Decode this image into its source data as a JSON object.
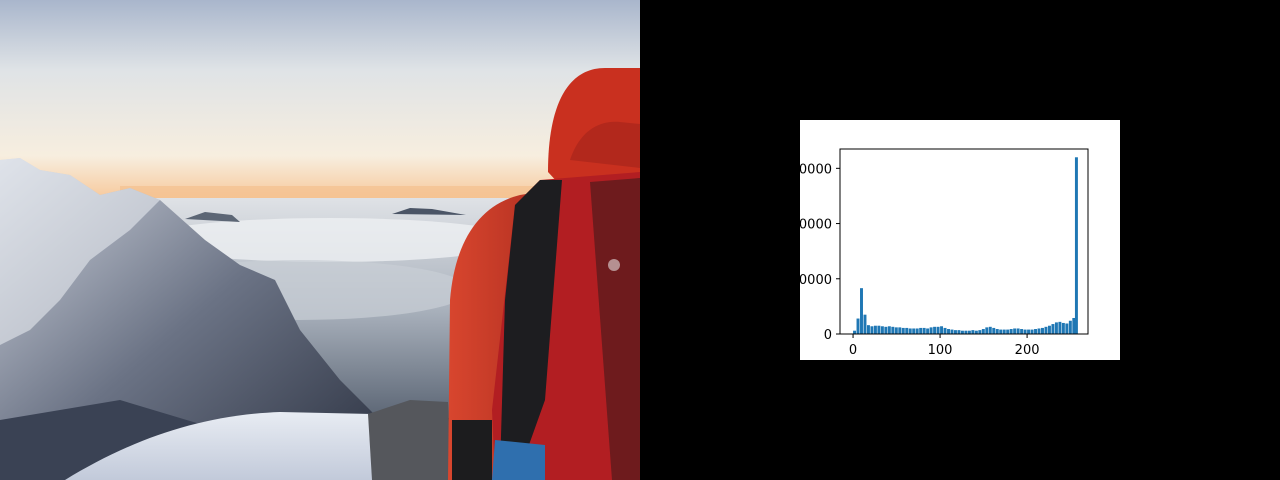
{
  "photo": {
    "subject": "photo"
  },
  "colors": {
    "bar": "#1f77b4",
    "sky_top": "#a9b6cc",
    "horizon_glow": "#f7d3a3",
    "jacket": "#c9301f",
    "backpack": "#b21e22"
  },
  "chart_data": {
    "type": "bar",
    "title": "",
    "xlabel": "",
    "ylabel": "",
    "xlim": [
      -15,
      270
    ],
    "ylim": [
      0,
      33500
    ],
    "xticks": [
      0,
      100,
      200
    ],
    "xtick_labels": [
      "0",
      "100",
      "200"
    ],
    "yticks": [
      0,
      10000,
      20000,
      30000
    ],
    "ytick_labels": [
      "0",
      "0000",
      "0000",
      "0000"
    ],
    "bin_width": 4,
    "series": [
      {
        "x": [
          0,
          4,
          8,
          12,
          16,
          20,
          24,
          28,
          32,
          36,
          40,
          44,
          48,
          52,
          56,
          60,
          64,
          68,
          72,
          76,
          80,
          84,
          88,
          92,
          96,
          100,
          104,
          108,
          112,
          116,
          120,
          124,
          128,
          132,
          136,
          140,
          144,
          148,
          152,
          156,
          160,
          164,
          168,
          172,
          176,
          180,
          184,
          188,
          192,
          196,
          200,
          204,
          208,
          212,
          216,
          220,
          224,
          228,
          232,
          236,
          240,
          244,
          248,
          252,
          255
        ],
        "values": [
          600,
          2800,
          8300,
          3500,
          1600,
          1400,
          1500,
          1500,
          1400,
          1300,
          1400,
          1300,
          1200,
          1200,
          1100,
          1100,
          1000,
          1000,
          1000,
          1100,
          1100,
          1000,
          1200,
          1300,
          1300,
          1400,
          1100,
          900,
          800,
          700,
          700,
          600,
          600,
          600,
          700,
          600,
          700,
          900,
          1200,
          1300,
          1100,
          900,
          800,
          800,
          800,
          900,
          1000,
          1000,
          900,
          800,
          800,
          800,
          900,
          1000,
          1100,
          1300,
          1500,
          1800,
          2100,
          2200,
          2000,
          1900,
          2400,
          2900,
          32000
        ]
      }
    ]
  }
}
